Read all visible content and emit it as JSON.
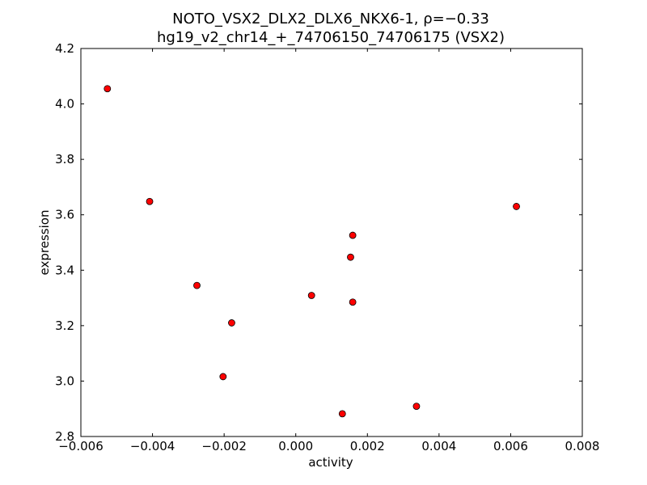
{
  "chart_data": {
    "type": "scatter",
    "title": "NOTO_VSX2_DLX2_DLX6_NKX6-1, ρ=−0.33",
    "subtitle": "hg19_v2_chr14_+_74706150_74706175 (VSX2)",
    "xlabel": "activity",
    "ylabel": "expression",
    "xlim": [
      -0.006,
      0.008
    ],
    "ylim": [
      2.8,
      4.2
    ],
    "xticks": [
      -0.006,
      -0.004,
      -0.002,
      0.0,
      0.002,
      0.004,
      0.006,
      0.008
    ],
    "xtick_labels": [
      "−0.006",
      "−0.004",
      "−0.002",
      "0.000",
      "0.002",
      "0.004",
      "0.006",
      "0.008"
    ],
    "yticks": [
      2.8,
      3.0,
      3.2,
      3.4,
      3.6,
      3.8,
      4.0,
      4.2
    ],
    "ytick_labels": [
      "2.8",
      "3.0",
      "3.2",
      "3.4",
      "3.6",
      "3.8",
      "4.0",
      "4.2"
    ],
    "grid": false,
    "marker_color": "#ff0000",
    "x": [
      -0.00526,
      -0.00408,
      -0.00276,
      -0.00179,
      -0.00203,
      0.00044,
      0.0013,
      0.00153,
      0.00159,
      0.00159,
      0.00337,
      0.00616
    ],
    "y": [
      4.055,
      3.648,
      3.345,
      3.21,
      3.016,
      3.309,
      2.882,
      3.447,
      3.526,
      3.285,
      2.909,
      3.63
    ]
  }
}
